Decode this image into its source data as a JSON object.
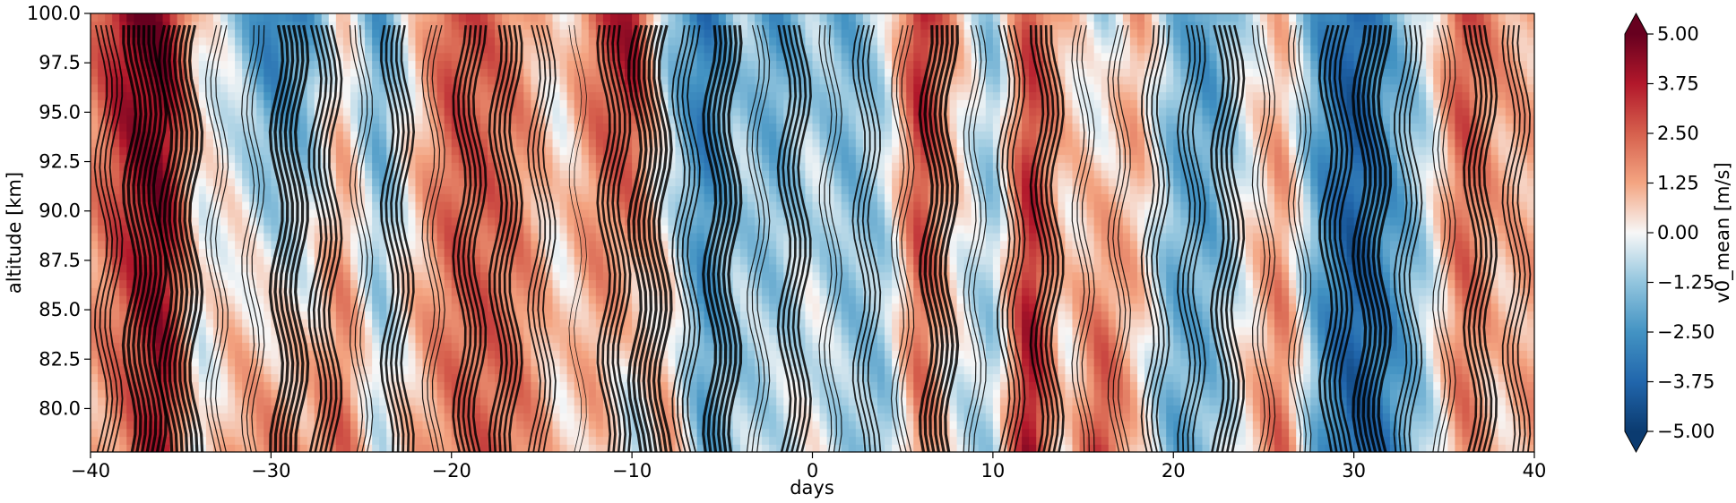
{
  "chart_data": {
    "type": "heatmap",
    "title": "",
    "xlabel": "days",
    "ylabel": "altitude [km]",
    "xlim": [
      -40,
      40
    ],
    "ylim": [
      77.8,
      100.0
    ],
    "x_ticks": [
      -40,
      -30,
      -20,
      -10,
      0,
      10,
      20,
      30,
      40
    ],
    "y_ticks": [
      "80.0",
      "82.5",
      "85.0",
      "87.5",
      "90.0",
      "92.5",
      "95.0",
      "97.5",
      "100.0"
    ],
    "colorbar": {
      "label": "v0_mean [m/s]",
      "colormap": "RdBu_r",
      "range": [
        -5.0,
        5.0
      ],
      "ticks": [
        "−5.00",
        "−3.75",
        "−2.50",
        "−1.25",
        "0.00",
        "1.25",
        "2.50",
        "3.75",
        "5.00"
      ],
      "extend": "both"
    },
    "field_profile": {
      "days": [
        -40,
        -38,
        -36,
        -34,
        -32,
        -30,
        -28,
        -26,
        -24,
        -22,
        -20,
        -18,
        -16,
        -14,
        -12,
        -10,
        -8,
        -6,
        -4,
        -2,
        0,
        2,
        4,
        6,
        8,
        10,
        12,
        14,
        16,
        18,
        20,
        22,
        24,
        26,
        28,
        30,
        32,
        34,
        36,
        38,
        40
      ],
      "upper_v": [
        2.0,
        4.5,
        4.8,
        0.5,
        -1.0,
        -3.5,
        -2.5,
        0.5,
        -2.5,
        0.5,
        3.0,
        2.5,
        1.5,
        0.0,
        2.5,
        4.5,
        -1.5,
        -3.5,
        -1.0,
        -2.5,
        -1.0,
        -2.0,
        -0.5,
        4.0,
        1.0,
        -1.5,
        3.0,
        1.0,
        -1.0,
        1.5,
        -1.5,
        -2.5,
        -0.5,
        1.0,
        -2.5,
        -4.0,
        -2.0,
        -0.5,
        3.0,
        1.5,
        1.0
      ],
      "lower_v": [
        1.0,
        2.0,
        4.0,
        -0.5,
        1.5,
        2.0,
        1.5,
        2.5,
        -0.5,
        1.0,
        2.0,
        2.5,
        2.0,
        0.5,
        1.0,
        -1.0,
        1.5,
        -2.0,
        -1.0,
        -0.5,
        0.0,
        -1.0,
        -1.5,
        2.0,
        -0.5,
        -1.0,
        4.5,
        0.0,
        3.5,
        0.5,
        -2.0,
        -1.5,
        0.5,
        2.5,
        -2.0,
        -4.0,
        -3.0,
        -1.0,
        2.0,
        0.5,
        1.5
      ]
    },
    "contour_lines": "black iso-lines overlaid on the filled field"
  }
}
